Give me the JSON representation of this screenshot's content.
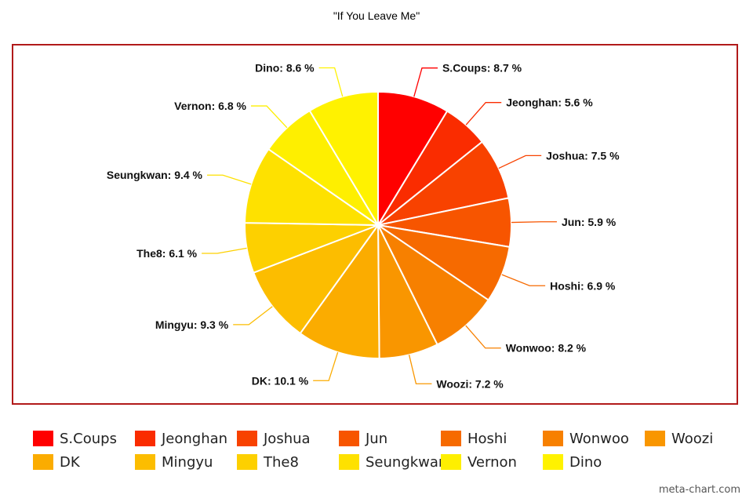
{
  "chart_data": {
    "type": "pie",
    "title": "\"If You Leave Me\"",
    "categories": [
      "S.Coups",
      "Jeonghan",
      "Joshua",
      "Jun",
      "Hoshi",
      "Wonwoo",
      "Woozi",
      "DK",
      "Mingyu",
      "The8",
      "Seungkwan",
      "Vernon",
      "Dino"
    ],
    "values": [
      8.7,
      5.6,
      7.5,
      5.9,
      6.9,
      8.2,
      7.2,
      10.1,
      9.3,
      6.1,
      9.4,
      6.8,
      8.6
    ],
    "slice_labels": [
      "S.Coups: 8.7 %",
      "Jeonghan: 5.6 %",
      "Joshua: 7.5 %",
      "Jun: 5.9 %",
      "Hoshi: 6.9 %",
      "Wonwoo: 8.2 %",
      "Woozi: 7.2 %",
      "DK: 10.1 %",
      "Mingyu: 9.3 %",
      "The8: 6.1 %",
      "Seungkwan: 9.4 %",
      "Vernon: 6.8 %",
      "Dino: 8.6 %"
    ],
    "colors": [
      "#ff0000",
      "#fa2c00",
      "#f84200",
      "#f75500",
      "#f66a00",
      "#f78000",
      "#f99600",
      "#fbac00",
      "#fcbd00",
      "#fdd000",
      "#fee100",
      "#feef00",
      "#fff200"
    ],
    "legend_position": "bottom",
    "units": "%"
  },
  "credit": "meta-chart.com"
}
